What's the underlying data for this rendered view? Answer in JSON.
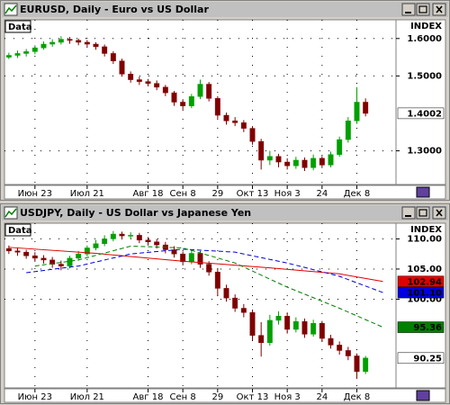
{
  "chart_data": [
    {
      "type": "candlestick",
      "title": "EURUSD, Daily - Euro vs US Dollar",
      "panel_label": "Data",
      "index_label": "INDEX",
      "up_color": "#00a000",
      "down_color": "#800000",
      "grid": true,
      "xlim": [
        -0.5,
        44.5
      ],
      "xticks": [
        {
          "value": 3,
          "label": "Июн 23"
        },
        {
          "value": 9,
          "label": "Июл 21"
        },
        {
          "value": 16,
          "label": "Авг 18"
        },
        {
          "value": 20,
          "label": "Сен 8"
        },
        {
          "value": 24,
          "label": "29"
        },
        {
          "value": 28,
          "label": "Окт 13"
        },
        {
          "value": 32,
          "label": "Ноя 3"
        },
        {
          "value": 36,
          "label": "24"
        },
        {
          "value": 40,
          "label": "Дек 8"
        }
      ],
      "ylim": [
        1.21,
        1.65
      ],
      "yticks": [
        {
          "value": 1.3,
          "label": "1.3000"
        },
        {
          "value": 1.5,
          "label": "1.5000"
        },
        {
          "value": 1.6,
          "label": "1.6000"
        }
      ],
      "open": [
        1.55,
        1.555,
        1.56,
        1.565,
        1.575,
        1.585,
        1.59,
        1.598,
        1.595,
        1.59,
        1.585,
        1.578,
        1.56,
        1.54,
        1.505,
        1.49,
        1.485,
        1.48,
        1.47,
        1.455,
        1.43,
        1.42,
        1.445,
        1.478,
        1.44,
        1.395,
        1.38,
        1.375,
        1.36,
        1.325,
        1.275,
        1.285,
        1.27,
        1.26,
        1.275,
        1.255,
        1.28,
        1.262,
        1.29,
        1.33,
        1.38,
        1.43
      ],
      "high": [
        1.562,
        1.568,
        1.572,
        1.582,
        1.592,
        1.598,
        1.606,
        1.604,
        1.6,
        1.596,
        1.59,
        1.584,
        1.566,
        1.546,
        1.512,
        1.498,
        1.492,
        1.488,
        1.476,
        1.46,
        1.438,
        1.452,
        1.49,
        1.484,
        1.446,
        1.402,
        1.39,
        1.382,
        1.366,
        1.332,
        1.3,
        1.292,
        1.28,
        1.284,
        1.282,
        1.29,
        1.286,
        1.298,
        1.338,
        1.39,
        1.47,
        1.44
      ],
      "low": [
        1.545,
        1.548,
        1.552,
        1.558,
        1.57,
        1.578,
        1.584,
        1.586,
        1.582,
        1.578,
        1.57,
        1.552,
        1.532,
        1.498,
        1.482,
        1.476,
        1.472,
        1.462,
        1.446,
        1.42,
        1.41,
        1.414,
        1.438,
        1.432,
        1.386,
        1.37,
        1.366,
        1.35,
        1.316,
        1.25,
        1.262,
        1.256,
        1.25,
        1.252,
        1.246,
        1.248,
        1.254,
        1.256,
        1.284,
        1.322,
        1.372,
        1.392
      ],
      "close": [
        1.555,
        1.56,
        1.565,
        1.575,
        1.585,
        1.59,
        1.598,
        1.595,
        1.59,
        1.585,
        1.578,
        1.56,
        1.54,
        1.505,
        1.49,
        1.485,
        1.48,
        1.47,
        1.455,
        1.43,
        1.42,
        1.445,
        1.478,
        1.44,
        1.395,
        1.38,
        1.375,
        1.36,
        1.325,
        1.275,
        1.285,
        1.27,
        1.26,
        1.275,
        1.255,
        1.28,
        1.262,
        1.29,
        1.33,
        1.38,
        1.43,
        1.4
      ],
      "lines": [],
      "price_markers": [
        {
          "value": 1.4002,
          "color": "#ffffff",
          "text_color": "#000000"
        }
      ]
    },
    {
      "type": "candlestick",
      "title": "USDJPY, Daily - US Dollar vs Japanese Yen",
      "panel_label": "Data",
      "index_label": "INDEX",
      "up_color": "#00a000",
      "down_color": "#800000",
      "grid": true,
      "xlim": [
        -0.5,
        44.5
      ],
      "xticks": [
        {
          "value": 3,
          "label": "Июн 23"
        },
        {
          "value": 9,
          "label": "Июл 21"
        },
        {
          "value": 16,
          "label": "Авг 18"
        },
        {
          "value": 20,
          "label": "Сен 8"
        },
        {
          "value": 24,
          "label": "29"
        },
        {
          "value": 28,
          "label": "Окт 13"
        },
        {
          "value": 32,
          "label": "Ноя 3"
        },
        {
          "value": 36,
          "label": "24"
        },
        {
          "value": 40,
          "label": "Дек 8"
        }
      ],
      "ylim": [
        85.3,
        112.6
      ],
      "yticks": [
        {
          "value": 100,
          "label": "100.00"
        },
        {
          "value": 105,
          "label": "105.00"
        },
        {
          "value": 110,
          "label": "110.00"
        }
      ],
      "open": [
        108.4,
        108.0,
        107.8,
        107.2,
        106.8,
        106.5,
        105.8,
        105.5,
        106.8,
        107.5,
        108.5,
        109.2,
        110.0,
        110.8,
        110.5,
        110.6,
        109.8,
        109.5,
        109.0,
        108.2,
        107.5,
        106.2,
        107.6,
        105.8,
        104.5,
        101.8,
        100.2,
        98.5,
        97.8,
        94.0,
        92.8,
        96.5,
        97.2,
        95.0,
        96.3,
        94.2,
        96.0,
        93.5,
        92.4,
        91.5,
        90.6,
        88.0
      ],
      "high": [
        108.9,
        108.6,
        108.2,
        107.8,
        107.3,
        107.0,
        106.4,
        107.2,
        108.0,
        108.9,
        109.8,
        110.6,
        111.3,
        111.2,
        111.1,
        111.0,
        110.3,
        110.0,
        109.5,
        108.8,
        107.9,
        108.1,
        108.0,
        106.3,
        105.0,
        102.4,
        100.8,
        99.2,
        98.3,
        96.2,
        97.4,
        98.0,
        97.8,
        97.0,
        96.8,
        96.6,
        96.4,
        94.1,
        93.0,
        92.1,
        91.0,
        90.6
      ],
      "low": [
        107.5,
        107.2,
        106.7,
        106.2,
        105.9,
        105.2,
        104.8,
        105.1,
        106.4,
        107.1,
        108.1,
        108.8,
        109.6,
        109.9,
        110.0,
        109.3,
        108.9,
        108.4,
        107.6,
        106.9,
        105.6,
        105.8,
        105.2,
        103.9,
        100.5,
        99.6,
        97.9,
        97.0,
        93.2,
        90.5,
        92.3,
        95.8,
        94.3,
        94.5,
        93.6,
        93.8,
        92.9,
        91.8,
        90.8,
        89.9,
        86.8,
        87.6
      ],
      "close": [
        108.0,
        107.8,
        107.2,
        106.8,
        106.5,
        105.8,
        105.5,
        106.8,
        107.5,
        108.5,
        109.2,
        110.0,
        110.8,
        110.5,
        110.6,
        109.8,
        109.5,
        109.0,
        108.2,
        107.5,
        106.2,
        107.6,
        105.8,
        104.5,
        101.8,
        100.2,
        98.5,
        97.8,
        94.0,
        92.8,
        96.5,
        97.2,
        95.0,
        96.3,
        94.2,
        96.0,
        93.5,
        92.4,
        91.5,
        90.6,
        88.0,
        90.25
      ],
      "lines": [
        {
          "color": "#e00000",
          "dashed": false,
          "x": [
            0,
            10,
            20,
            30,
            38,
            43
          ],
          "values": [
            108.6,
            107.6,
            106.3,
            105.2,
            104.2,
            102.94
          ]
        },
        {
          "color": "#0000e0",
          "dashed": true,
          "x": [
            2,
            8,
            14,
            20,
            26,
            32,
            38,
            43
          ],
          "values": [
            104.4,
            105.5,
            107.5,
            108.3,
            107.8,
            106.0,
            103.8,
            101.1
          ]
        },
        {
          "color": "#008000",
          "dashed": true,
          "x": [
            3,
            8,
            14,
            20,
            26,
            32,
            38,
            43
          ],
          "values": [
            105.5,
            106.5,
            108.8,
            108.5,
            106.0,
            102.0,
            98.5,
            95.36
          ]
        }
      ],
      "price_markers": [
        {
          "value": 102.94,
          "color": "#e00000",
          "text_color": "#ffffff"
        },
        {
          "value": 101.1,
          "label": "101.10",
          "color": "#0000e0",
          "text_color": "#ffffff"
        },
        {
          "value": 95.36,
          "color": "#008000",
          "text_color": "#ffffff"
        },
        {
          "value": 90.25,
          "color": "#ffffff",
          "text_color": "#000000"
        }
      ]
    }
  ]
}
